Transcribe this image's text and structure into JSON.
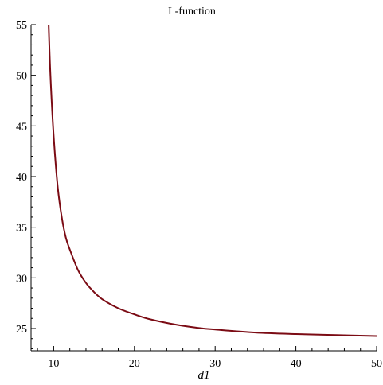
{
  "chart_data": {
    "type": "line",
    "title": "L-function",
    "xlabel": "d1",
    "ylabel": "",
    "xlim": [
      7.2,
      50
    ],
    "ylim": [
      22.8,
      55
    ],
    "x_ticks": [
      10,
      20,
      30,
      40,
      50
    ],
    "y_ticks": [
      25,
      30,
      35,
      40,
      45,
      50,
      55
    ],
    "grid": false,
    "color": "#7b0b14",
    "series": [
      {
        "x": [
          9.38,
          9.6,
          10.0,
          10.5,
          11.0,
          11.5,
          12.0,
          13.0,
          14.0,
          15.0,
          16.0,
          18.0,
          20.0,
          22.0,
          25.0,
          28.0,
          30.0,
          35.0,
          40.0,
          45.0,
          50.0
        ],
        "y": [
          55.0,
          50.0,
          44.0,
          39.0,
          36.0,
          34.0,
          32.8,
          30.8,
          29.5,
          28.6,
          27.9,
          27.0,
          26.4,
          25.9,
          25.4,
          25.05,
          24.9,
          24.6,
          24.45,
          24.35,
          24.25
        ]
      }
    ]
  }
}
